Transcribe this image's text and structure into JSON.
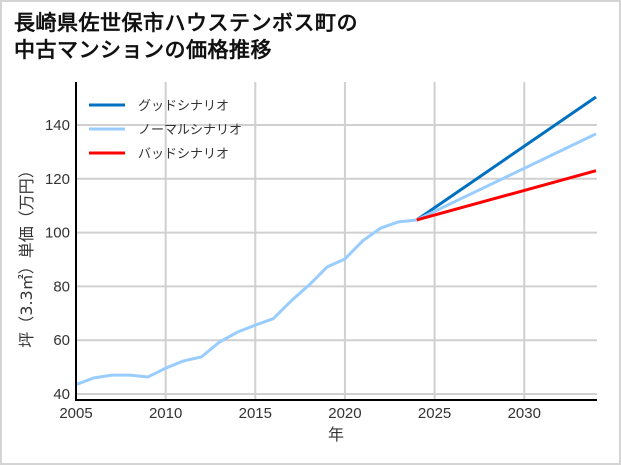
{
  "title": {
    "line1": "長崎県佐世保市ハウステンボス町の",
    "line2": "中古マンションの価格推移"
  },
  "chart_data": {
    "type": "line",
    "title": "長崎県佐世保市ハウステンボス町の中古マンションの価格推移",
    "xlabel": "年",
    "ylabel": "坪（3.3㎡）単価（万円）",
    "xlim": [
      2005,
      2034
    ],
    "ylim": [
      38,
      155
    ],
    "xticks": [
      2005,
      2010,
      2015,
      2020,
      2025,
      2030
    ],
    "yticks": [
      40,
      60,
      80,
      100,
      120,
      140
    ],
    "grid": true,
    "legend_position": "upper left",
    "historical": {
      "x": [
        2005,
        2006,
        2007,
        2008,
        2009,
        2010,
        2011,
        2012,
        2013,
        2014,
        2015,
        2016,
        2017,
        2018,
        2019,
        2020,
        2021,
        2022,
        2023,
        2024
      ],
      "values": [
        43.5,
        46,
        47,
        47,
        46.3,
        49.6,
        52.3,
        53.8,
        59.3,
        63,
        65.6,
        68,
        74.6,
        80.5,
        87.2,
        90.2,
        97,
        101.7,
        104,
        104.7
      ]
    },
    "series": [
      {
        "name": "グッドシナリオ",
        "color": "#0070c0",
        "x": [
          2024,
          2034
        ],
        "values": [
          104.7,
          150.4
        ]
      },
      {
        "name": "ノーマルシナリオ",
        "color": "#99ccff",
        "x": [
          2024,
          2034
        ],
        "values": [
          104.7,
          136.7
        ]
      },
      {
        "name": "バッドシナリオ",
        "color": "#ff0000",
        "x": [
          2024,
          2034
        ],
        "values": [
          104.7,
          123
        ]
      }
    ]
  },
  "axis": {
    "xlabel": "年",
    "ylabel": "坪（3.3㎡）単価（万円）",
    "xticks": [
      "2005",
      "2010",
      "2015",
      "2020",
      "2025",
      "2030"
    ],
    "yticks": [
      "40",
      "60",
      "80",
      "100",
      "120",
      "140"
    ]
  },
  "legend": [
    {
      "label": "グッドシナリオ",
      "color": "#0070c0"
    },
    {
      "label": "ノーマルシナリオ",
      "color": "#99ccff"
    },
    {
      "label": "バッドシナリオ",
      "color": "#ff0000"
    }
  ]
}
